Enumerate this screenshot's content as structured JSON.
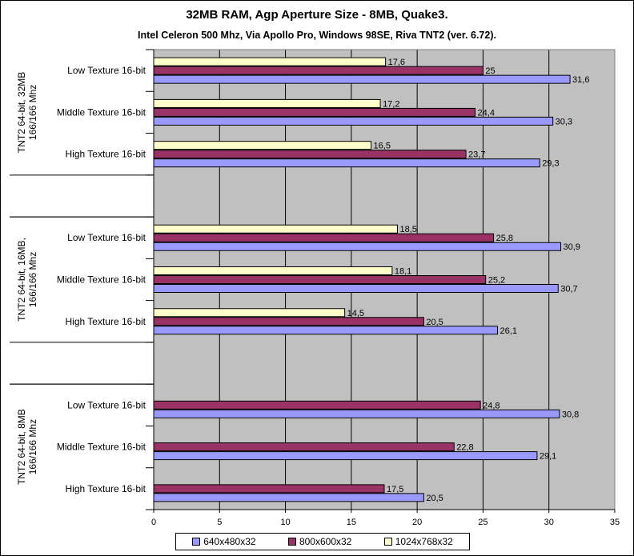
{
  "chart_data": {
    "type": "bar",
    "orientation": "horizontal",
    "title": "32MB RAM,  Agp Aperture Size - 8MB, Quake3.",
    "subtitle": "Intel Celeron 500 Mhz, Via Apollo Pro, Windows 98SE, Riva TNT2 (ver. 6.72).",
    "xlim": [
      0,
      35
    ],
    "xticks": [
      "0",
      "5",
      "10",
      "15",
      "20",
      "25",
      "30",
      "35"
    ],
    "grid": true,
    "legend_position": "bottom",
    "series": [
      {
        "name": "640x480x32",
        "color": "#9999ff"
      },
      {
        "name": "800x600x32",
        "color": "#993366"
      },
      {
        "name": "1024x768x32",
        "color": "#ffffcc"
      }
    ],
    "groups": [
      {
        "label": "TNT2 64-bit, 32MB 166/166 Mhz",
        "label_lines": [
          "TNT2 64-bit, 32MB",
          "166/166 Mhz"
        ],
        "categories": [
          {
            "label": "Low Texture 16-bit",
            "values": [
              31.6,
              25,
              17.6
            ],
            "value_labels": [
              "31,6",
              "25",
              "17,6"
            ]
          },
          {
            "label": "Middle Texture 16-bit",
            "values": [
              30.3,
              24.4,
              17.2
            ],
            "value_labels": [
              "30,3",
              "24,4",
              "17,2"
            ]
          },
          {
            "label": "High Texture 16-bit",
            "values": [
              29.3,
              23.7,
              16.5
            ],
            "value_labels": [
              "29,3",
              "23,7",
              "16,5"
            ]
          }
        ]
      },
      {
        "label": "TNT2 64-bit, 16MB, 166/166 Mhz",
        "label_lines": [
          "TNT2 64-bit, 16MB,",
          "166/166 Mhz"
        ],
        "categories": [
          {
            "label": "Low Texture 16-bit",
            "values": [
              30.9,
              25.8,
              18.5
            ],
            "value_labels": [
              "30,9",
              "25,8",
              "18,5"
            ]
          },
          {
            "label": "Middle Texture 16-bit",
            "values": [
              30.7,
              25.2,
              18.1
            ],
            "value_labels": [
              "30,7",
              "25,2",
              "18,1"
            ]
          },
          {
            "label": "High Texture 16-bit",
            "values": [
              26.1,
              20.5,
              14.5
            ],
            "value_labels": [
              "26,1",
              "20,5",
              "14,5"
            ]
          }
        ]
      },
      {
        "label": "TNT2 64-bit, 8MB 166/166 Mhz",
        "label_lines": [
          "TNT2 64-bit, 8MB",
          "166/166 Mhz"
        ],
        "categories": [
          {
            "label": "Low Texture 16-bit",
            "values": [
              30.8,
              24.8,
              null
            ],
            "value_labels": [
              "30,8",
              "24,8",
              ""
            ]
          },
          {
            "label": "Middle Texture 16-bit",
            "values": [
              29.1,
              22.8,
              null
            ],
            "value_labels": [
              "29,1",
              "22,8",
              ""
            ]
          },
          {
            "label": "High Texture 16-bit",
            "values": [
              20.5,
              17.5,
              null
            ],
            "value_labels": [
              "20,5",
              "17,5",
              ""
            ]
          }
        ]
      }
    ]
  }
}
